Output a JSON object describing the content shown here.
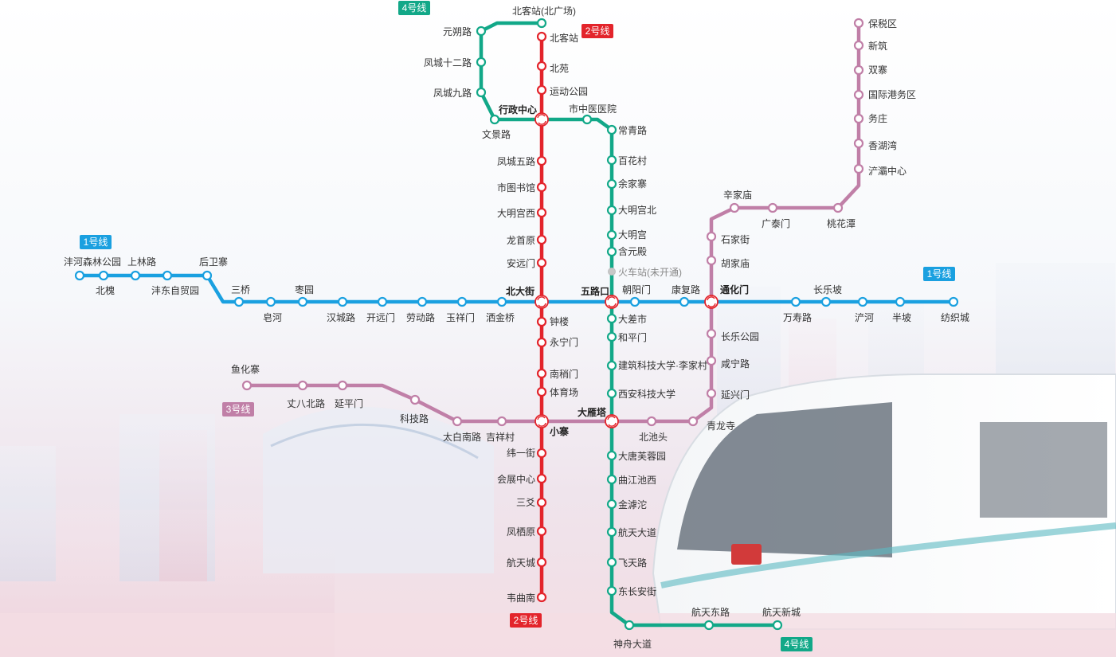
{
  "colors": {
    "line1": "#1aa0e0",
    "line2": "#e3242b",
    "line3": "#c07fa7",
    "line4": "#12a888",
    "label": "#333333",
    "unopened": "#9a9a9a"
  },
  "icons": {
    "transfer": "transfer-station-icon"
  },
  "line_badges": [
    {
      "line": "line1",
      "text": "1号线",
      "color": "#1aa0e0"
    },
    {
      "line": "line1",
      "text": "1号线",
      "color": "#1aa0e0"
    },
    {
      "line": "line2",
      "text": "2号线",
      "color": "#e3242b"
    },
    {
      "line": "line2",
      "text": "2号线",
      "color": "#e3242b"
    },
    {
      "line": "line3",
      "text": "3号线",
      "color": "#c07fa7"
    },
    {
      "line": "line4",
      "text": "4号线",
      "color": "#12a888"
    },
    {
      "line": "line4",
      "text": "4号线",
      "color": "#12a888"
    }
  ],
  "lines": [
    {
      "id": "line1",
      "name": "1号线",
      "color": "#1aa0e0",
      "stations": [
        "沣河森林公园",
        "北槐",
        "上林路",
        "沣东自贸园",
        "后卫寨",
        "三桥",
        "皂河",
        "枣园",
        "汉城路",
        "开远门",
        "劳动路",
        "玉祥门",
        "洒金桥",
        "北大街",
        "五路口",
        "朝阳门",
        "康复路",
        "通化门",
        "万寿路",
        "长乐坡",
        "浐河",
        "半坡",
        "纺织城"
      ]
    },
    {
      "id": "line2",
      "name": "2号线",
      "color": "#e3242b",
      "stations": [
        "北客站",
        "北苑",
        "运动公园",
        "行政中心",
        "凤城五路",
        "市图书馆",
        "大明宫西",
        "龙首原",
        "安远门",
        "北大街",
        "钟楼",
        "永宁门",
        "南稍门",
        "体育场",
        "小寨",
        "纬一街",
        "会展中心",
        "三爻",
        "凤栖原",
        "航天城",
        "韦曲南"
      ]
    },
    {
      "id": "line3",
      "name": "3号线",
      "color": "#c07fa7",
      "stations": [
        "鱼化寨",
        "丈八北路",
        "延平门",
        "科技路",
        "太白南路",
        "吉祥村",
        "小寨",
        "大雁塔",
        "北池头",
        "青龙寺",
        "延兴门",
        "咸宁路",
        "长乐公园",
        "通化门",
        "胡家庙",
        "石家街",
        "辛家庙",
        "广泰门",
        "桃花潭",
        "浐灞中心",
        "香湖湾",
        "务庄",
        "国际港务区",
        "双寨",
        "新筑",
        "保税区"
      ]
    },
    {
      "id": "line4",
      "name": "4号线",
      "color": "#12a888",
      "stations": [
        "北客站(北广场)",
        "元朔路",
        "凤城十二路",
        "凤城九路",
        "文景路",
        "行政中心",
        "市中医医院",
        "常青路",
        "百花村",
        "余家寨",
        "大明宫北",
        "大明宫",
        "含元殿",
        "火车站(未开通)",
        "五路口",
        "大差市",
        "和平门",
        "建筑科技大学·李家村",
        "西安科技大学",
        "大雁塔",
        "大唐芙蓉园",
        "曲江池西",
        "金滹沱",
        "航天大道",
        "飞天路",
        "东长安街",
        "神舟大道",
        "航天东路",
        "航天新城"
      ]
    }
  ],
  "transfer_stations": [
    "行政中心",
    "北大街",
    "五路口",
    "通化门",
    "小寨",
    "大雁塔"
  ],
  "unopened_stations": [
    "火车站(未开通)"
  ]
}
